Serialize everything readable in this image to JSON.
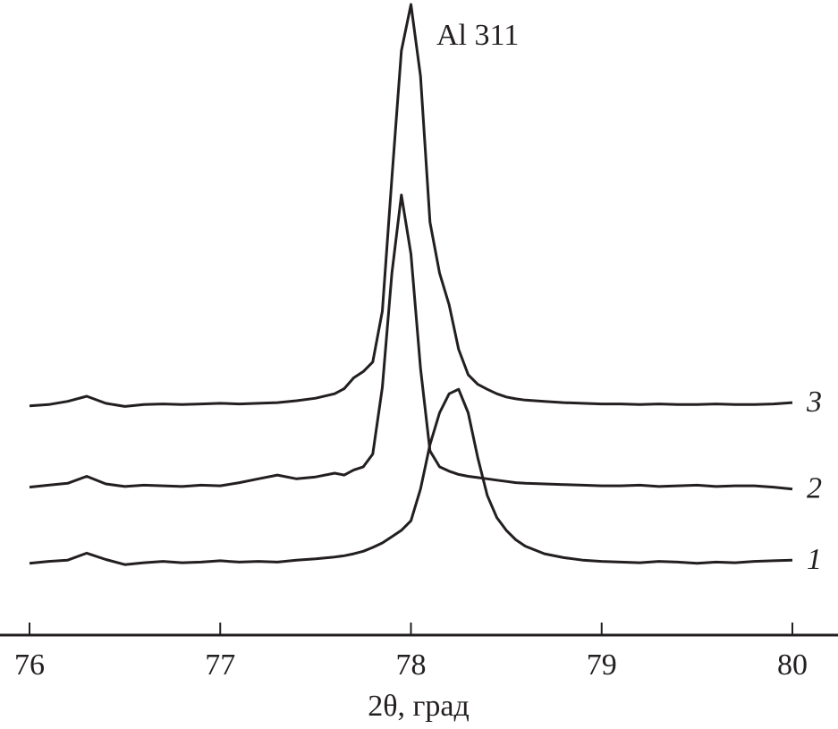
{
  "chart_data": {
    "type": "line",
    "xlabel": "2θ, град",
    "annotation": "Al 311",
    "xlim": [
      76,
      80
    ],
    "xticks": [
      76,
      77,
      78,
      79,
      80
    ],
    "ylim": [
      0,
      100
    ],
    "x": [
      76.0,
      76.1,
      76.2,
      76.3,
      76.4,
      76.5,
      76.6,
      76.7,
      76.8,
      76.9,
      77.0,
      77.1,
      77.2,
      77.3,
      77.4,
      77.5,
      77.6,
      77.65,
      77.7,
      77.75,
      77.8,
      77.85,
      77.9,
      77.95,
      78.0,
      78.05,
      78.1,
      78.15,
      78.2,
      78.25,
      78.3,
      78.35,
      78.4,
      78.45,
      78.5,
      78.55,
      78.6,
      78.7,
      78.8,
      78.9,
      79.0,
      79.1,
      79.2,
      79.3,
      79.4,
      79.5,
      79.6,
      79.7,
      79.8,
      79.9,
      80.0
    ],
    "series": [
      {
        "name": "1",
        "color": "#231f20",
        "values": [
          11.3,
          11.6,
          11.8,
          12.9,
          11.9,
          11.1,
          11.4,
          11.6,
          11.4,
          11.5,
          11.7,
          11.5,
          11.6,
          11.5,
          11.8,
          12.0,
          12.3,
          12.5,
          12.8,
          13.2,
          13.8,
          14.5,
          15.5,
          16.5,
          18,
          23,
          30,
          35,
          38,
          38.7,
          35,
          28,
          22,
          18.5,
          16.5,
          15,
          14,
          12.8,
          12.2,
          11.8,
          11.6,
          11.5,
          11.4,
          11.6,
          11.5,
          11.3,
          11.5,
          11.4,
          11.6,
          11.7,
          11.8
        ]
      },
      {
        "name": "2",
        "color": "#231f20",
        "values": [
          23.3,
          23.6,
          23.9,
          25.0,
          23.8,
          23.4,
          23.6,
          23.5,
          23.4,
          23.6,
          23.5,
          24.0,
          24.6,
          25.2,
          24.6,
          24.9,
          25.5,
          25.2,
          26,
          26.5,
          28.5,
          39,
          57,
          69.3,
          60,
          42,
          29,
          26.5,
          25.8,
          25.3,
          25,
          24.8,
          24.6,
          24.4,
          24.2,
          24,
          23.9,
          23.8,
          23.7,
          23.6,
          23.5,
          23.5,
          23.6,
          23.4,
          23.5,
          23.6,
          23.4,
          23.5,
          23.5,
          23.3,
          23.0
        ]
      },
      {
        "name": "3",
        "color": "#231f20",
        "values": [
          36.1,
          36.3,
          36.8,
          37.6,
          36.5,
          36.0,
          36.3,
          36.4,
          36.3,
          36.4,
          36.5,
          36.4,
          36.5,
          36.6,
          36.9,
          37.3,
          38.0,
          38.8,
          40.5,
          41.5,
          43,
          51,
          72,
          92,
          99.3,
          88,
          65,
          57,
          52,
          45,
          41,
          39.5,
          38.7,
          38,
          37.5,
          37.2,
          37,
          36.8,
          36.6,
          36.5,
          36.4,
          36.4,
          36.3,
          36.4,
          36.3,
          36.3,
          36.4,
          36.3,
          36.3,
          36.4,
          36.6
        ]
      }
    ]
  }
}
